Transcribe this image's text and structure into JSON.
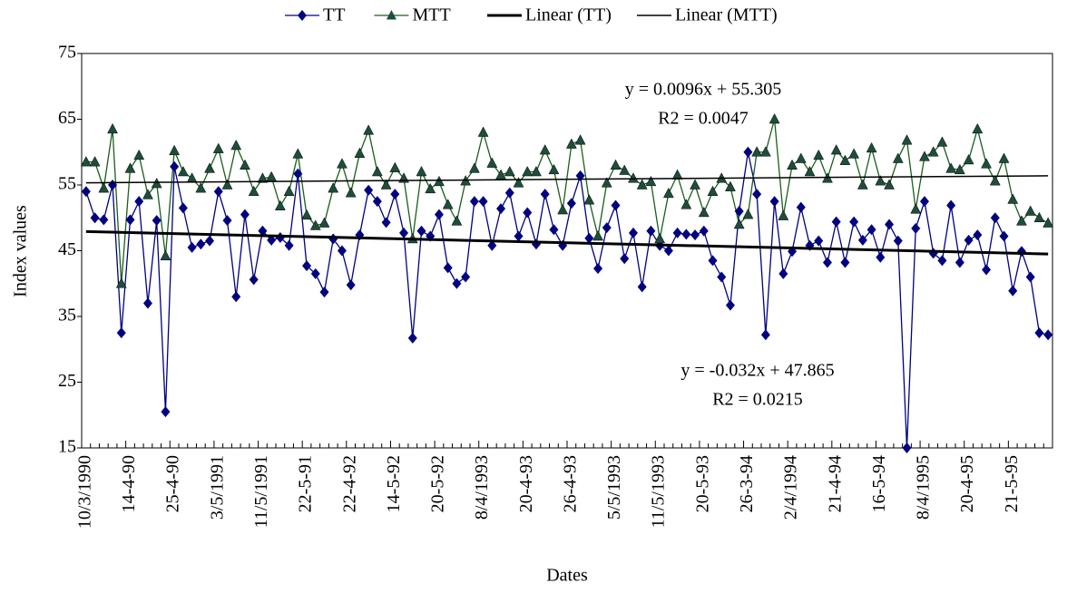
{
  "chart_data": {
    "type": "line",
    "x_label": "Dates",
    "y_label": "Index values",
    "ylim": [
      15,
      75
    ],
    "yticks": [
      15,
      25,
      35,
      45,
      55,
      65,
      75
    ],
    "categories": [
      "10/3/1990",
      null,
      null,
      null,
      null,
      "14-4-90",
      null,
      null,
      null,
      null,
      "25-4-90",
      null,
      null,
      null,
      null,
      "3/5/1991",
      null,
      null,
      null,
      null,
      "11/5/1991",
      null,
      null,
      null,
      null,
      "22-5-91",
      null,
      null,
      null,
      null,
      "22-4-92",
      null,
      null,
      null,
      null,
      "14-5-92",
      null,
      null,
      null,
      null,
      "20-5-92",
      null,
      null,
      null,
      null,
      "8/4/1993",
      null,
      null,
      null,
      null,
      "20-4-93",
      null,
      null,
      null,
      null,
      "26-4-93",
      null,
      null,
      null,
      null,
      "5/5/1993",
      null,
      null,
      null,
      null,
      "11/5/1993",
      null,
      null,
      null,
      null,
      "20-5-93",
      null,
      null,
      null,
      null,
      "26-3-94",
      null,
      null,
      null,
      null,
      "2/4/1994",
      null,
      null,
      null,
      null,
      "21-4-94",
      null,
      null,
      null,
      null,
      "16-5-94",
      null,
      null,
      null,
      null,
      "8/4/1995",
      null,
      null,
      null,
      null,
      "20-4-95",
      null,
      null,
      null,
      null,
      "21-5-95",
      null,
      null,
      null,
      null
    ],
    "series": [
      {
        "name": "TT",
        "color": "#000080",
        "marker": "diamond",
        "values": [
          54,
          50,
          49.7,
          55,
          32.5,
          49.7,
          52.5,
          37,
          49.6,
          20.5,
          57.8,
          51.5,
          45.5,
          46,
          46.5,
          54,
          49.6,
          38,
          50.5,
          40.6,
          48,
          46.6,
          47,
          45.8,
          56.7,
          42.7,
          41.5,
          38.7,
          46.8,
          45,
          39.8,
          47.4,
          54.2,
          52.5,
          49.3,
          53.6,
          47.7,
          31.7,
          48,
          47.2,
          50.5,
          42.4,
          40,
          41,
          52.5,
          52.5,
          45.8,
          51.4,
          53.8,
          47.2,
          50.8,
          46,
          53.6,
          48.2,
          45.8,
          52.2,
          56.4,
          46.9,
          42.3,
          48.5,
          51.9,
          43.8,
          47.7,
          39.5,
          48,
          45.8,
          45,
          47.7,
          47.5,
          47.4,
          48,
          43.5,
          41,
          36.7,
          51,
          60,
          53.6,
          32.2,
          52.5,
          41.5,
          44.9,
          51.6,
          45.8,
          46.5,
          43.2,
          49.4,
          43.2,
          49.4,
          46.6,
          48.2,
          44,
          49,
          46.5,
          15,
          48.4,
          52.5,
          44.6,
          43.5,
          51.9,
          43.2,
          46.6,
          47.4,
          42.1,
          50,
          47.2,
          38.9,
          44.9,
          41,
          32.5,
          32.2
        ]
      },
      {
        "name": "MTT",
        "color": "#1a5e1a",
        "marker_color": "#1e4d3c",
        "marker": "triangle",
        "values": [
          58.5,
          58.5,
          54.5,
          63.5,
          40,
          57.5,
          59.5,
          53.5,
          55.2,
          44.2,
          60.2,
          57,
          56,
          54.5,
          57.5,
          60.5,
          55,
          61,
          58,
          54,
          56,
          56.2,
          51.8,
          54,
          59.7,
          50.4,
          48.8,
          49.2,
          54.5,
          58.2,
          53.8,
          59.8,
          63.3,
          57,
          55,
          57.6,
          56,
          46.8,
          57,
          54.4,
          55.5,
          52,
          49.5,
          55.6,
          57.5,
          63,
          58.3,
          56.5,
          57,
          55.3,
          57,
          57,
          60.3,
          57.3,
          51.2,
          61.2,
          61.8,
          52.7,
          47.2,
          55.3,
          58,
          57.2,
          56,
          55,
          55.5,
          46.8,
          53.7,
          56.5,
          52,
          55,
          50.8,
          54,
          56,
          54.7,
          49,
          50.5,
          60,
          60,
          65,
          50.3,
          58,
          59,
          57,
          59.5,
          56,
          60.3,
          58.7,
          59.7,
          55,
          60.6,
          55.6,
          55,
          59,
          61.8,
          51.3,
          59.3,
          60,
          61.5,
          57.5,
          57.3,
          58.8,
          63.5,
          58.2,
          55.6,
          59,
          52.8,
          49.5,
          51,
          50,
          49.2
        ]
      }
    ],
    "trendlines": [
      {
        "name": "Linear (TT)",
        "of": 0,
        "color": "#000000",
        "width": 3,
        "equation": "y = -0.032x + 47.865",
        "r2": "R2 = 0.0215"
      },
      {
        "name": "Linear (MTT)",
        "of": 1,
        "color": "#000000",
        "width": 1.5,
        "equation": "y = 0.0096x + 55.305",
        "r2": "R2 = 0.0047"
      }
    ]
  }
}
